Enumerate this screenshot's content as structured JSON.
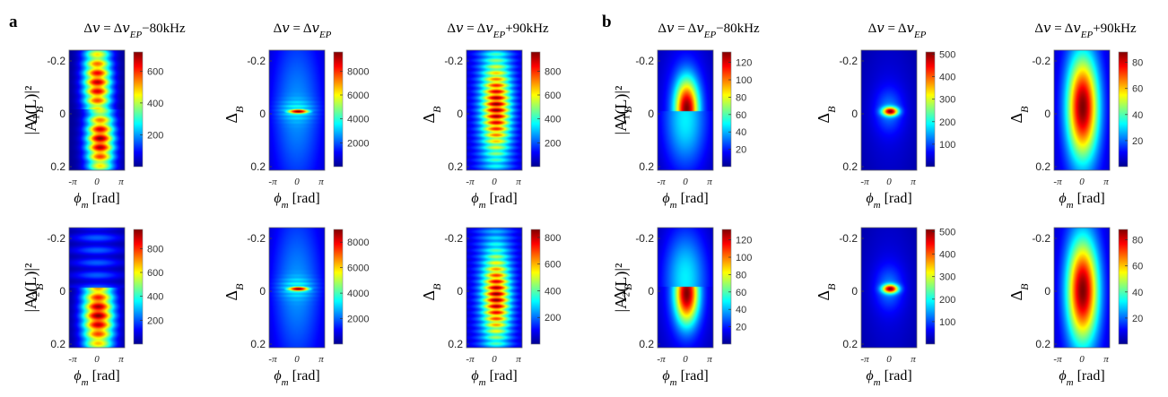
{
  "figure": {
    "panel_labels": [
      "a",
      "b"
    ],
    "row_labels": [
      "|A₁(L)|²",
      "|A₂(L)|²"
    ],
    "column_titles": [
      "Δν = Δν_EP−80kHz",
      "Δν = Δν_EP",
      "Δν = Δν_EP+90kHz"
    ],
    "title_parts": {
      "prefix": "Δ𝑣 = Δ𝑣",
      "sub": "EP",
      "suffixes": [
        "−80kHz",
        "",
        "+90kHz"
      ]
    },
    "ylabel_main": "Δ",
    "ylabel_sub": "B",
    "xlabel_main": "ϕ",
    "xlabel_sub": "m",
    "xlabel_unit": " [rad]",
    "colormap": [
      "#00008f",
      "#0000ff",
      "#0080ff",
      "#00ffff",
      "#80ff80",
      "#ffff00",
      "#ff8000",
      "#ff0000",
      "#800000"
    ]
  },
  "chart_data": [
    {
      "type": "heatmap",
      "panel": "a",
      "row": "|A₁(L)|²",
      "column": "Δν = Δν_EP−80kHz",
      "x_ticks": [
        "-π",
        "0",
        "π"
      ],
      "y_ticks": [
        "-0.2",
        "0",
        "0.2"
      ],
      "xlim": [
        -3.1416,
        3.1416
      ],
      "ylim": [
        -0.25,
        0.22
      ],
      "colorbar_ticks": [
        200,
        400,
        600
      ],
      "colorbar_range": [
        0,
        720
      ],
      "pattern": "stripe_shift",
      "peak_value": 700
    },
    {
      "type": "heatmap",
      "panel": "a",
      "row": "|A₁(L)|²",
      "column": "Δν = Δν_EP",
      "x_ticks": [
        "-π",
        "0",
        "π"
      ],
      "y_ticks": [
        "-0.2",
        "0",
        "0.2"
      ],
      "xlim": [
        -3.1416,
        3.1416
      ],
      "ylim": [
        -0.25,
        0.22
      ],
      "colorbar_ticks": [
        2000,
        4000,
        6000,
        8000
      ],
      "colorbar_range": [
        0,
        9600
      ],
      "pattern": "sharp_line",
      "peak_value": 9500
    },
    {
      "type": "heatmap",
      "panel": "a",
      "row": "|A₁(L)|²",
      "column": "Δν = Δν_EP+90kHz",
      "x_ticks": [
        "-π",
        "0",
        "π"
      ],
      "y_ticks": [
        "-0.2",
        "0",
        "0.2"
      ],
      "xlim": [
        -3.1416,
        3.1416
      ],
      "ylim": [
        -0.25,
        0.22
      ],
      "colorbar_ticks": [
        200,
        400,
        600,
        800
      ],
      "colorbar_range": [
        0,
        960
      ],
      "pattern": "ellipse_ripple",
      "peak_value": 950
    },
    {
      "type": "heatmap",
      "panel": "a",
      "row": "|A₂(L)|²",
      "column": "Δν = Δν_EP−80kHz",
      "x_ticks": [
        "-π",
        "0",
        "π"
      ],
      "y_ticks": [
        "-0.2",
        "0",
        "0.2"
      ],
      "xlim": [
        -3.1416,
        3.1416
      ],
      "ylim": [
        -0.25,
        0.22
      ],
      "colorbar_ticks": [
        200,
        400,
        600,
        800
      ],
      "colorbar_range": [
        0,
        960
      ],
      "pattern": "lower_half",
      "peak_value": 950
    },
    {
      "type": "heatmap",
      "panel": "a",
      "row": "|A₂(L)|²",
      "column": "Δν = Δν_EP",
      "x_ticks": [
        "-π",
        "0",
        "π"
      ],
      "y_ticks": [
        "-0.2",
        "0",
        "0.2"
      ],
      "xlim": [
        -3.1416,
        3.1416
      ],
      "ylim": [
        -0.25,
        0.22
      ],
      "colorbar_ticks": [
        2000,
        4000,
        6000,
        8000
      ],
      "colorbar_range": [
        0,
        9000
      ],
      "pattern": "sharp_line",
      "peak_value": 8900
    },
    {
      "type": "heatmap",
      "panel": "a",
      "row": "|A₂(L)|²",
      "column": "Δν = Δν_EP+90kHz",
      "x_ticks": [
        "-π",
        "0",
        "π"
      ],
      "y_ticks": [
        "-0.2",
        "0",
        "0.2"
      ],
      "xlim": [
        -3.1416,
        3.1416
      ],
      "ylim": [
        -0.25,
        0.22
      ],
      "colorbar_ticks": [
        200,
        400,
        600,
        800
      ],
      "colorbar_range": [
        0,
        860
      ],
      "pattern": "ellipse_ripple_low",
      "peak_value": 850
    },
    {
      "type": "heatmap",
      "panel": "b",
      "row": "|A₁(L)|²",
      "column": "Δν = Δν_EP−80kHz",
      "x_ticks": [
        "-π",
        "0",
        "π"
      ],
      "y_ticks": [
        "-0.2",
        "0",
        "0.2"
      ],
      "xlim": [
        -3.1416,
        3.1416
      ],
      "ylim": [
        -0.25,
        0.22
      ],
      "colorbar_ticks": [
        20,
        40,
        60,
        80,
        100,
        120
      ],
      "colorbar_range": [
        0,
        132
      ],
      "pattern": "half_up",
      "peak_value": 130
    },
    {
      "type": "heatmap",
      "panel": "b",
      "row": "|A₁(L)|²",
      "column": "Δν = Δν_EP",
      "x_ticks": [
        "-π",
        "0",
        "π"
      ],
      "y_ticks": [
        "-0.2",
        "0",
        "0.2"
      ],
      "xlim": [
        -3.1416,
        3.1416
      ],
      "ylim": [
        -0.25,
        0.22
      ],
      "colorbar_ticks": [
        100,
        200,
        300,
        400,
        500
      ],
      "colorbar_range": [
        0,
        510
      ],
      "pattern": "small_spot",
      "peak_value": 505
    },
    {
      "type": "heatmap",
      "panel": "b",
      "row": "|A₁(L)|²",
      "column": "Δν = Δν_EP+90kHz",
      "x_ticks": [
        "-π",
        "0",
        "π"
      ],
      "y_ticks": [
        "-0.2",
        "0",
        "0.2"
      ],
      "xlim": [
        -3.1416,
        3.1416
      ],
      "ylim": [
        -0.25,
        0.22
      ],
      "colorbar_ticks": [
        20,
        40,
        60,
        80
      ],
      "colorbar_range": [
        0,
        88
      ],
      "pattern": "ellipse_smooth",
      "peak_value": 87
    },
    {
      "type": "heatmap",
      "panel": "b",
      "row": "|A₂(L)|²",
      "column": "Δν = Δν_EP−80kHz",
      "x_ticks": [
        "-π",
        "0",
        "π"
      ],
      "y_ticks": [
        "-0.2",
        "0",
        "0.2"
      ],
      "xlim": [
        -3.1416,
        3.1416
      ],
      "ylim": [
        -0.25,
        0.22
      ],
      "colorbar_ticks": [
        20,
        40,
        60,
        80,
        100,
        120
      ],
      "colorbar_range": [
        0,
        132
      ],
      "pattern": "half_down",
      "peak_value": 130
    },
    {
      "type": "heatmap",
      "panel": "b",
      "row": "|A₂(L)|²",
      "column": "Δν = Δν_EP",
      "x_ticks": [
        "-π",
        "0",
        "π"
      ],
      "y_ticks": [
        "-0.2",
        "0",
        "0.2"
      ],
      "xlim": [
        -3.1416,
        3.1416
      ],
      "ylim": [
        -0.25,
        0.22
      ],
      "colorbar_ticks": [
        100,
        200,
        300,
        400,
        500
      ],
      "colorbar_range": [
        0,
        510
      ],
      "pattern": "small_spot",
      "peak_value": 505
    },
    {
      "type": "heatmap",
      "panel": "b",
      "row": "|A₂(L)|²",
      "column": "Δν = Δν_EP+90kHz",
      "x_ticks": [
        "-π",
        "0",
        "π"
      ],
      "y_ticks": [
        "-0.2",
        "0",
        "0.2"
      ],
      "xlim": [
        -3.1416,
        3.1416
      ],
      "ylim": [
        -0.25,
        0.22
      ],
      "colorbar_ticks": [
        20,
        40,
        60,
        80
      ],
      "colorbar_range": [
        0,
        88
      ],
      "pattern": "ellipse_smooth_down",
      "peak_value": 87
    }
  ]
}
